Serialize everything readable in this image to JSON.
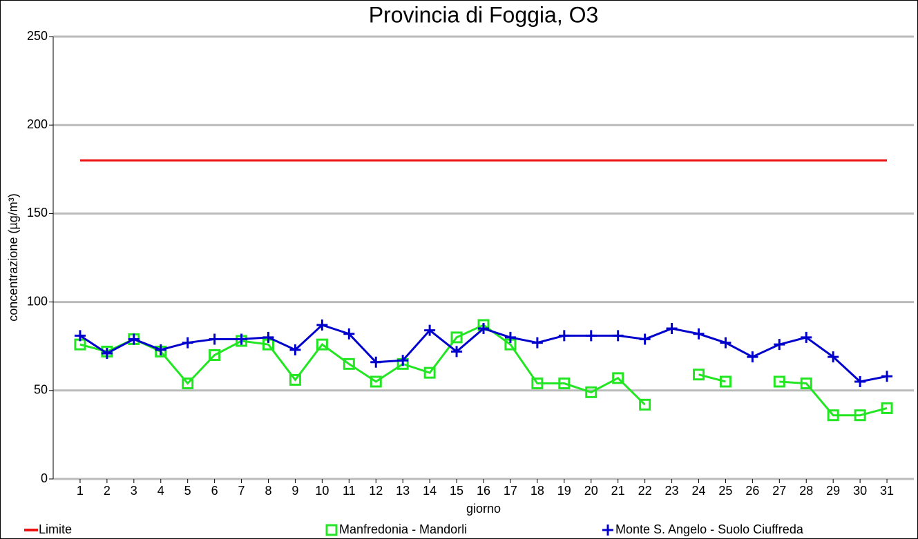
{
  "chart_data": {
    "type": "line",
    "title": "Provincia di Foggia, O3",
    "ylabel": "concentrazione (µg/m³)",
    "xlabel": "giorno",
    "categories": [
      "1",
      "2",
      "3",
      "4",
      "5",
      "6",
      "7",
      "8",
      "9",
      "10",
      "11",
      "12",
      "13",
      "14",
      "15",
      "16",
      "17",
      "18",
      "19",
      "20",
      "21",
      "22",
      "23",
      "24",
      "25",
      "26",
      "27",
      "28",
      "29",
      "30",
      "31"
    ],
    "series": [
      {
        "name": "Limite",
        "color": "#ee1111",
        "marker": "none",
        "values": [
          180,
          180,
          180,
          180,
          180,
          180,
          180,
          180,
          180,
          180,
          180,
          180,
          180,
          180,
          180,
          180,
          180,
          180,
          180,
          180,
          180,
          180,
          180,
          180,
          180,
          180,
          180,
          180,
          180,
          180,
          180
        ]
      },
      {
        "name": "Manfredonia - Mandorli",
        "color": "#22e622",
        "marker": "square",
        "values": [
          76,
          72,
          79,
          72,
          54,
          70,
          78,
          76,
          56,
          76,
          65,
          55,
          65,
          60,
          80,
          87,
          76,
          54,
          54,
          49,
          57,
          42,
          null,
          59,
          55,
          null,
          55,
          54,
          36,
          36,
          40
        ]
      },
      {
        "name": "Monte S. Angelo - Suolo Ciuffreda",
        "color": "#0000cc",
        "marker": "plus",
        "values": [
          81,
          71,
          79,
          73,
          77,
          79,
          79,
          80,
          73,
          87,
          82,
          66,
          67,
          84,
          72,
          85,
          80,
          77,
          81,
          81,
          81,
          79,
          85,
          82,
          77,
          69,
          76,
          80,
          69,
          55,
          58
        ]
      }
    ],
    "ylim": [
      0,
      250
    ],
    "yticks": [
      0,
      50,
      100,
      150,
      200,
      250
    ],
    "grid": true,
    "legend": "bottom"
  }
}
